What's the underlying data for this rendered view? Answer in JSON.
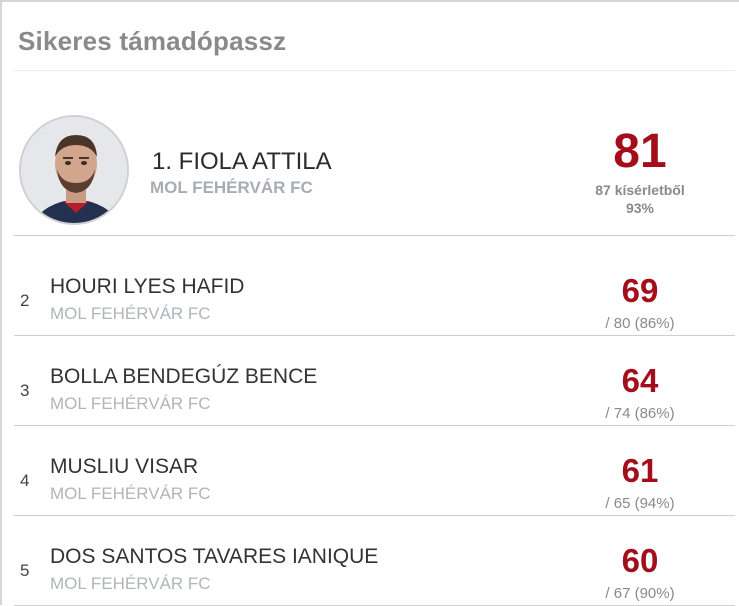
{
  "widget": {
    "title": "Sikeres támadópassz"
  },
  "leader": {
    "rank_name": "1. FIOLA ATTILA",
    "club": "MOL FEHÉRVÁR FC",
    "value": "81",
    "attempts_text": "87 kísérletből",
    "percent_text": "93%"
  },
  "rows": [
    {
      "rank": "2",
      "name": "HOURI LYES HAFID",
      "club": "MOL FEHÉRVÁR FC",
      "value": "69",
      "sub": "/ 80 (86%)"
    },
    {
      "rank": "3",
      "name": "BOLLA BENDEGÚZ BENCE",
      "club": "MOL FEHÉRVÁR FC",
      "value": "64",
      "sub": "/ 74 (86%)"
    },
    {
      "rank": "4",
      "name": "MUSLIU VISAR",
      "club": "MOL FEHÉRVÁR FC",
      "value": "61",
      "sub": "/ 65 (94%)"
    },
    {
      "rank": "5",
      "name": "DOS SANTOS TAVARES IANIQUE",
      "club": "MOL FEHÉRVÁR FC",
      "value": "60",
      "sub": "/ 67 (90%)"
    }
  ],
  "colors": {
    "accent": "#a40d1a",
    "muted": "#8a8a8a",
    "club": "#b0b5bb"
  }
}
